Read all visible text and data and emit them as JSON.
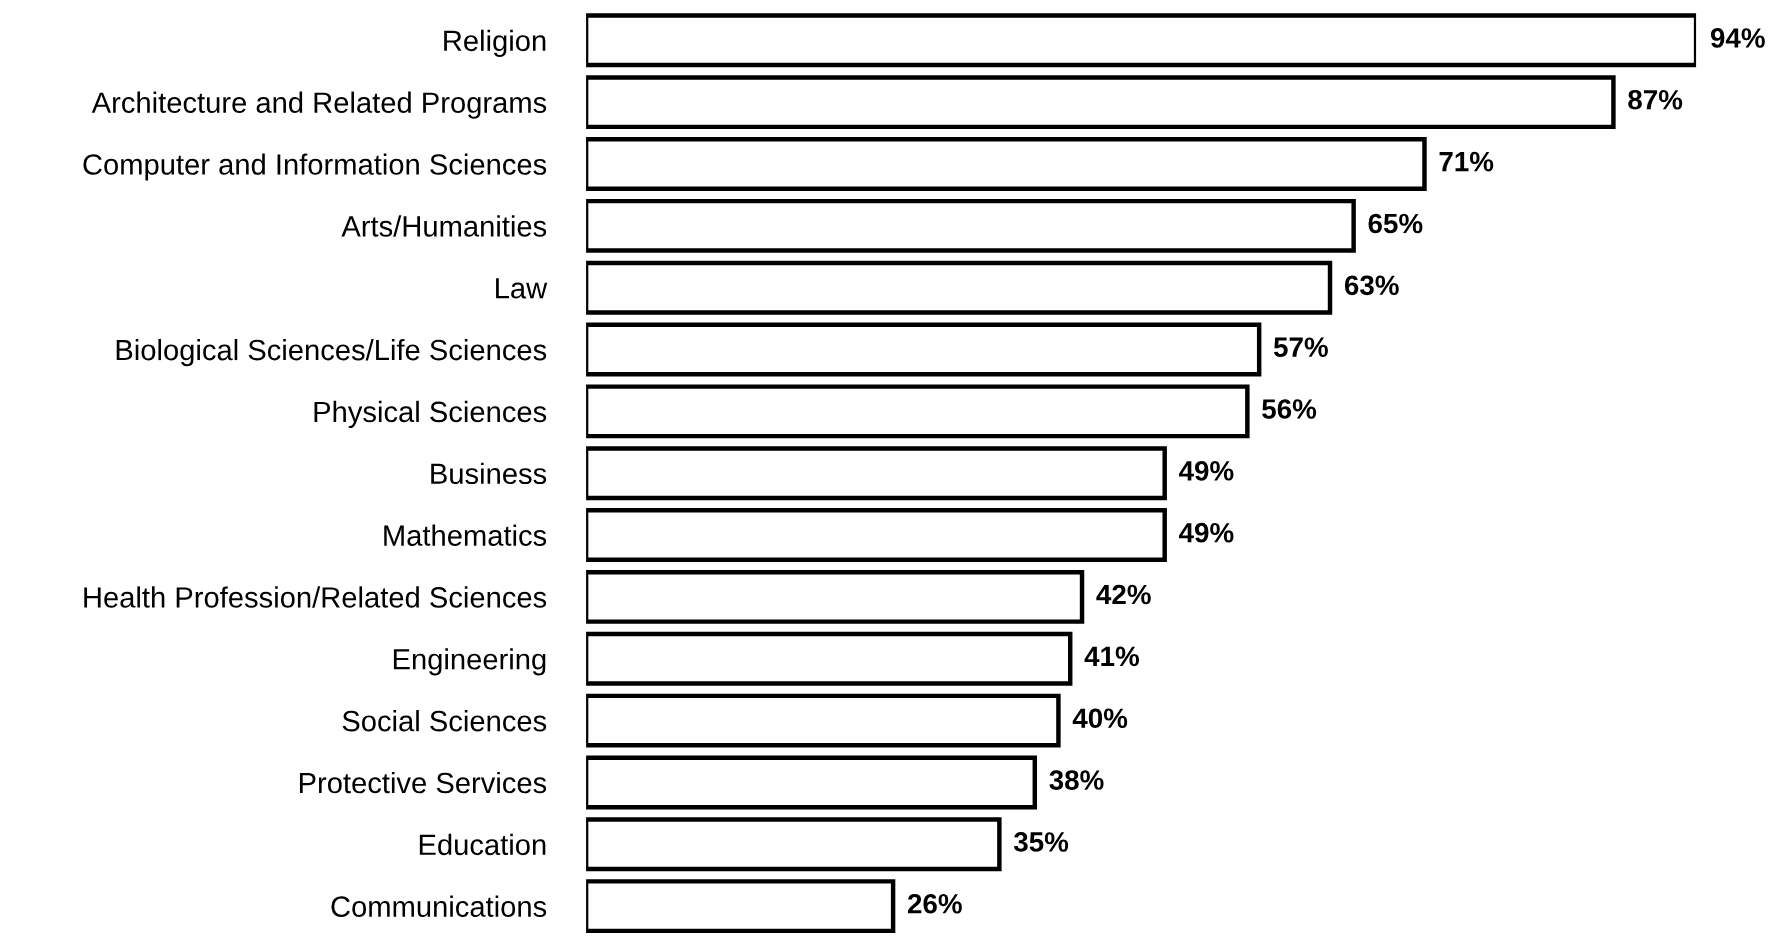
{
  "chart_data": {
    "type": "bar",
    "orientation": "horizontal",
    "tick_labels": "y",
    "categories": [
      "Religion",
      "Architecture and Related Programs",
      "Computer and Information Sciences",
      "Arts/Humanities",
      "Law",
      "Biological Sciences/Life Sciences",
      "Physical Sciences",
      "Business",
      "Mathematics",
      "Health Profession/Related Sciences",
      "Engineering",
      "Social Sciences",
      "Protective Services",
      "Education",
      "Communications"
    ],
    "values": [
      94,
      87,
      71,
      65,
      63,
      57,
      56,
      49,
      49,
      42,
      41,
      40,
      38,
      35,
      26
    ],
    "value_labels": [
      "94%",
      "87%",
      "71%",
      "65%",
      "63%",
      "57%",
      "56%",
      "49%",
      "49%",
      "42%",
      "41%",
      "40%",
      "38%",
      "35%",
      "26%"
    ],
    "color": "#ffffff"
  }
}
